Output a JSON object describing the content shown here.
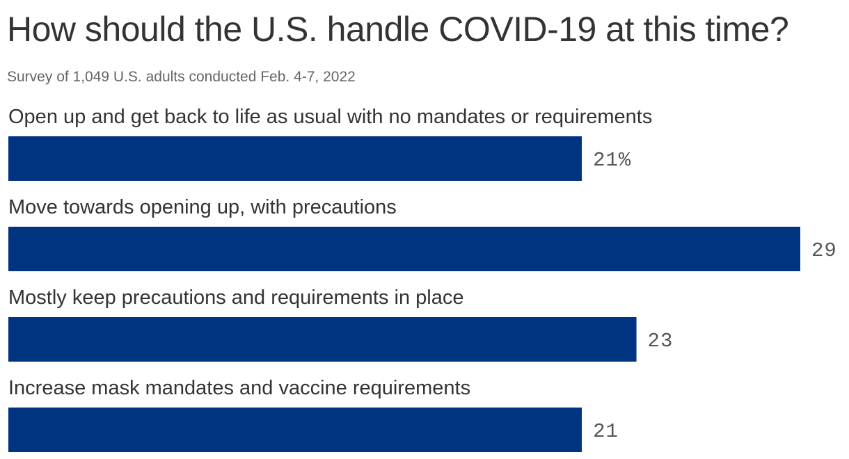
{
  "header": {
    "title": "How should the U.S. handle COVID-19 at this time?",
    "subtitle": "Survey of 1,049 U.S. adults conducted Feb. 4-7, 2022"
  },
  "chart_data": {
    "type": "bar",
    "orientation": "horizontal",
    "title": "How should the U.S. handle COVID-19 at this time?",
    "subtitle": "Survey of 1,049 U.S. adults conducted Feb. 4-7, 2022",
    "categories": [
      "Open up and get back to life as usual with no mandates or requirements",
      "Move towards opening up, with precautions",
      "Mostly keep precautions and requirements in place",
      "Increase mask mandates and vaccine requirements"
    ],
    "values": [
      21,
      29,
      23,
      21
    ],
    "value_labels": [
      "21%",
      "29",
      "23",
      "21"
    ],
    "unit": "%",
    "xlim": [
      0,
      29
    ],
    "grid": false,
    "legend": "none",
    "bar_color": "#003380"
  }
}
